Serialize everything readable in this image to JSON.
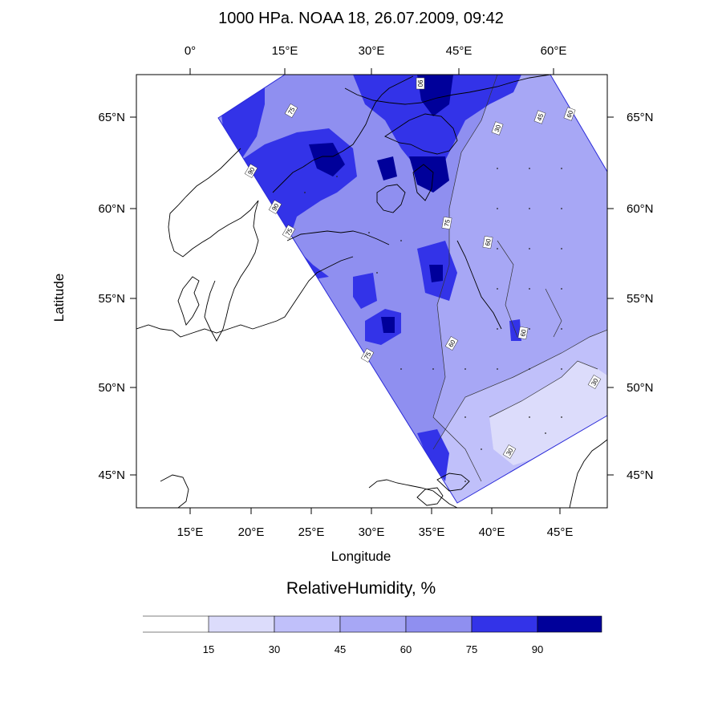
{
  "title": "1000 HPa. NOAA 18, 26.07.2009, 09:42",
  "axes": {
    "xlabel": "Longitude",
    "ylabel": "Latitude",
    "bottom_ticks": [
      "15°E",
      "20°E",
      "25°E",
      "30°E",
      "35°E",
      "40°E",
      "45°E"
    ],
    "top_ticks": [
      "0°",
      "15°E",
      "30°E",
      "45°E",
      "60°E"
    ],
    "left_ticks": [
      "65°N",
      "60°N",
      "55°N",
      "50°N",
      "45°N"
    ],
    "right_ticks": [
      "65°N",
      "60°N",
      "55°N",
      "50°N",
      "45°N"
    ],
    "lon_range": [
      10.5,
      49
    ],
    "lat_range": [
      43,
      67
    ]
  },
  "legend": {
    "title": "RelativeHumidity, %",
    "breaks": [
      "15",
      "30",
      "45",
      "60",
      "75",
      "90"
    ],
    "colors": [
      "#ffffff",
      "#dcdcfb",
      "#c0c0fa",
      "#a7a7f5",
      "#8f8ff0",
      "#3333e8",
      "#00009a"
    ]
  },
  "contour_labels": [
    "30",
    "45",
    "60",
    "75",
    "90"
  ],
  "colors": {
    "swath_base": "#a7a7f5",
    "land_outline": "#000000"
  }
}
